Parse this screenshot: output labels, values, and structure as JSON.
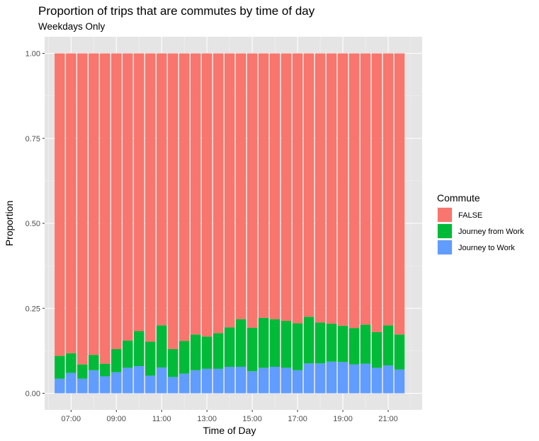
{
  "chart_data": {
    "type": "bar",
    "stacked": "fill",
    "title": "Proportion of trips that are commutes by time of day",
    "subtitle": "Weekdays Only",
    "xlabel": "Time of Day",
    "ylabel": "Proportion",
    "ylim": [
      0,
      1
    ],
    "yticks": [
      "0.00",
      "0.25",
      "0.50",
      "0.75",
      "1.00"
    ],
    "ytick_values": [
      0,
      0.25,
      0.5,
      0.75,
      1
    ],
    "xticks": [
      "07:00",
      "09:00",
      "11:00",
      "13:00",
      "15:00",
      "17:00",
      "19:00",
      "21:00"
    ],
    "xtick_hours": [
      7,
      9,
      11,
      13,
      15,
      17,
      19,
      21
    ],
    "xlim_hours": [
      5.833,
      22.5
    ],
    "grid": true,
    "panel_background": "#e5e5e5",
    "legend_position": "right",
    "legend_title": "Commute",
    "x_hours": [
      6.5,
      7.0,
      7.5,
      8.0,
      8.5,
      9.0,
      9.5,
      10.0,
      10.5,
      11.0,
      11.5,
      12.0,
      12.5,
      13.0,
      13.5,
      14.0,
      14.5,
      15.0,
      15.5,
      16.0,
      16.5,
      17.0,
      17.5,
      18.0,
      18.5,
      19.0,
      19.5,
      20.0,
      20.5,
      21.0,
      21.5
    ],
    "series": [
      {
        "name": "Journey to Work",
        "color": "#619CFF",
        "values": [
          0.043,
          0.06,
          0.043,
          0.068,
          0.05,
          0.062,
          0.075,
          0.08,
          0.052,
          0.076,
          0.048,
          0.058,
          0.068,
          0.072,
          0.072,
          0.078,
          0.078,
          0.065,
          0.075,
          0.078,
          0.075,
          0.068,
          0.088,
          0.088,
          0.093,
          0.092,
          0.085,
          0.087,
          0.075,
          0.082,
          0.07
        ]
      },
      {
        "name": "Journey from Work",
        "color": "#00BA38",
        "values": [
          0.067,
          0.058,
          0.042,
          0.045,
          0.037,
          0.068,
          0.08,
          0.103,
          0.1,
          0.124,
          0.082,
          0.096,
          0.105,
          0.095,
          0.105,
          0.116,
          0.14,
          0.128,
          0.147,
          0.14,
          0.138,
          0.138,
          0.137,
          0.12,
          0.112,
          0.107,
          0.107,
          0.115,
          0.105,
          0.118,
          0.103
        ]
      },
      {
        "name": "FALSE",
        "color": "#F8766D",
        "values": [
          0.89,
          0.882,
          0.915,
          0.887,
          0.913,
          0.87,
          0.845,
          0.817,
          0.848,
          0.8,
          0.87,
          0.846,
          0.827,
          0.833,
          0.823,
          0.806,
          0.782,
          0.807,
          0.778,
          0.782,
          0.787,
          0.794,
          0.775,
          0.792,
          0.795,
          0.801,
          0.808,
          0.798,
          0.82,
          0.8,
          0.827
        ]
      }
    ],
    "legend_order": [
      "FALSE",
      "Journey from Work",
      "Journey to Work"
    ]
  }
}
